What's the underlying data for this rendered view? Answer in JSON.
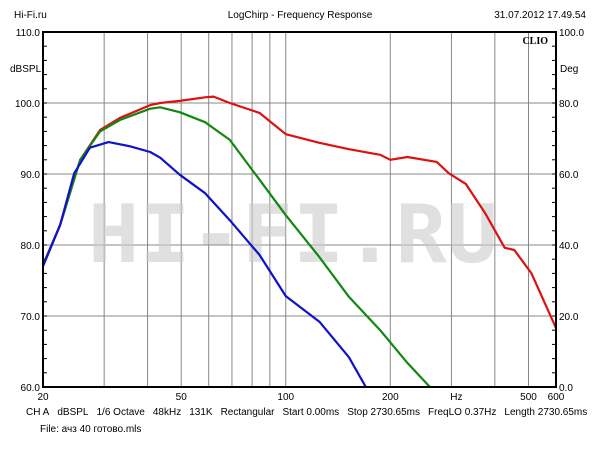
{
  "header": {
    "left": "Hi-Fi.ru",
    "title": "LogChirp - Frequency Response",
    "datetime": "31.07.2012 17.49.54"
  },
  "brand": "CLIO",
  "watermark": "HI-FI.RU",
  "footer": {
    "params": [
      "CH A",
      "dBSPL",
      "1/6 Octave",
      "48kHz",
      "131K",
      "Rectangular",
      "Start 0.00ms",
      "Stop 2730.65ms",
      "FreqLO 0.37Hz",
      "Length 2730.65ms"
    ],
    "file": "File: ачз 40 готово.mls"
  },
  "chart_data": {
    "type": "line",
    "title": "LogChirp - Frequency Response",
    "xlabel": "Hz",
    "ylabel": "dBSPL",
    "y2label": "Deg",
    "xscale": "log",
    "xlim": [
      20,
      600
    ],
    "ylim": [
      60,
      110
    ],
    "y2lim": [
      0,
      100
    ],
    "grid": true,
    "xticks": [
      {
        "v": 20,
        "l": "20"
      },
      {
        "v": 50,
        "l": "50"
      },
      {
        "v": 100,
        "l": "100"
      },
      {
        "v": 200,
        "l": "200"
      },
      {
        "v": 310,
        "l": "Hz"
      },
      {
        "v": 500,
        "l": "500"
      },
      {
        "v": 600,
        "l": "600"
      }
    ],
    "xgrid": [
      30,
      40,
      50,
      60,
      70,
      80,
      90,
      100,
      200,
      300,
      400,
      500
    ],
    "yticks": [
      "60.0",
      "70.0",
      "80.0",
      "90.0",
      "100.0",
      "110.0"
    ],
    "y2ticks": [
      "0.0",
      "20.0",
      "40.0",
      "60.0",
      "80.0",
      "100.0"
    ],
    "series": [
      {
        "name": "red",
        "color": "#dd1111",
        "points": [
          [
            20,
            77.2
          ],
          [
            22.4,
            82.8
          ],
          [
            25.6,
            92
          ],
          [
            29.2,
            96.2
          ],
          [
            33.3,
            97.9
          ],
          [
            40.7,
            99.7
          ],
          [
            43.5,
            100
          ],
          [
            49.5,
            100.3
          ],
          [
            58.6,
            100.8
          ],
          [
            62,
            100.9
          ],
          [
            69,
            100
          ],
          [
            84,
            98.6
          ],
          [
            100,
            95.6
          ],
          [
            125,
            94.4
          ],
          [
            152,
            93.5
          ],
          [
            187,
            92.7
          ],
          [
            200,
            92
          ],
          [
            224,
            92.4
          ],
          [
            272,
            91.7
          ],
          [
            295,
            90.1
          ],
          [
            330,
            88.6
          ],
          [
            375,
            84.5
          ],
          [
            427,
            79.6
          ],
          [
            455,
            79.3
          ],
          [
            510,
            76
          ],
          [
            600,
            68.3
          ]
        ]
      },
      {
        "name": "green",
        "color": "#118811",
        "points": [
          [
            20,
            77.2
          ],
          [
            22.4,
            82.8
          ],
          [
            25.6,
            92
          ],
          [
            29.2,
            96
          ],
          [
            33.3,
            97.6
          ],
          [
            40.7,
            99.2
          ],
          [
            43.5,
            99.4
          ],
          [
            49.5,
            98.7
          ],
          [
            58.6,
            97.3
          ],
          [
            69,
            94.8
          ],
          [
            84,
            89.2
          ],
          [
            100,
            84.2
          ],
          [
            125,
            78.3
          ],
          [
            152,
            72.7
          ],
          [
            187,
            68
          ],
          [
            224,
            63.4
          ],
          [
            260,
            60
          ]
        ]
      },
      {
        "name": "blue",
        "color": "#1111cc",
        "points": [
          [
            20,
            77
          ],
          [
            22.4,
            82.8
          ],
          [
            24.6,
            90.1
          ],
          [
            27.3,
            93.7
          ],
          [
            30.9,
            94.5
          ],
          [
            35.6,
            93.9
          ],
          [
            40.7,
            93.1
          ],
          [
            43.5,
            92.3
          ],
          [
            49.5,
            89.9
          ],
          [
            58.6,
            87.3
          ],
          [
            69,
            83.5
          ],
          [
            84,
            78.6
          ],
          [
            100,
            72.8
          ],
          [
            125,
            69.2
          ],
          [
            152,
            64.2
          ],
          [
            170,
            60
          ]
        ]
      }
    ]
  }
}
